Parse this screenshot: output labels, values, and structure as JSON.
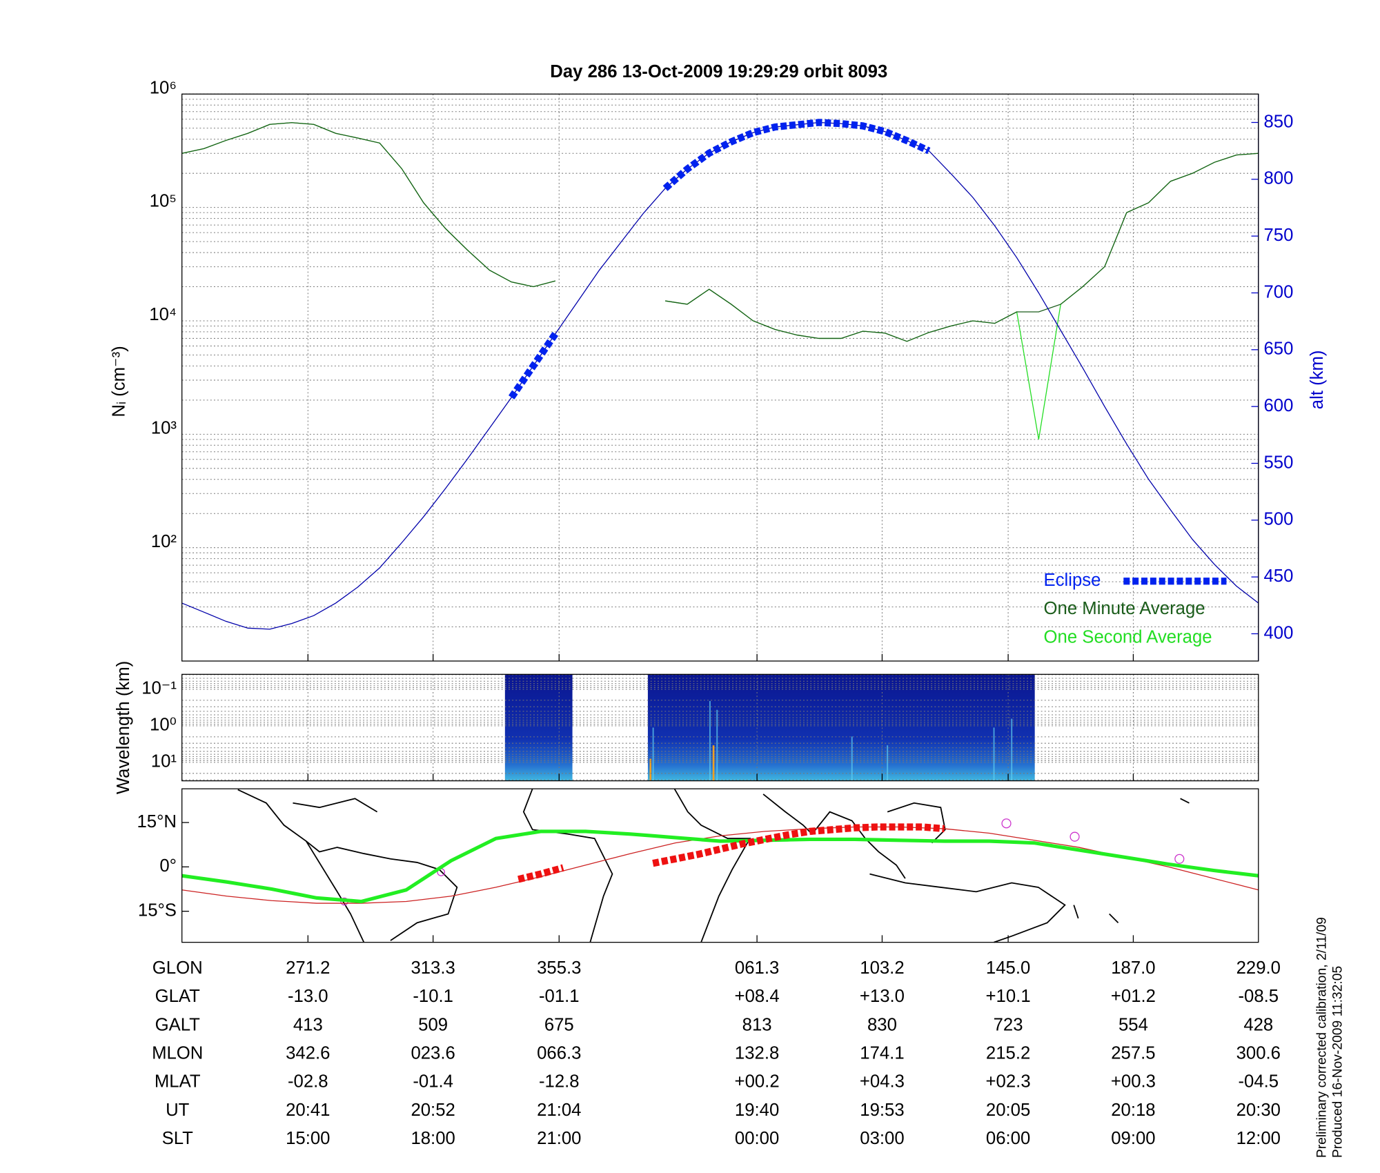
{
  "chart_data": [
    {
      "type": "line",
      "title": "Day 286  13-Oct-2009 19:29:29   orbit 8093",
      "ylabel": "Nᵢ (cm⁻³)",
      "y2label": "alt (km)",
      "log_scale": true,
      "grid": true,
      "legend": "lower right",
      "ylim": [
        10,
        1000000
      ],
      "yticks": [
        {
          "value": 100,
          "label": "10²"
        },
        {
          "value": 1000,
          "label": "10³"
        },
        {
          "value": 10000,
          "label": "10⁴"
        },
        {
          "value": 100000,
          "label": "10⁵"
        },
        {
          "value": 1000000,
          "label": "10⁶"
        }
      ],
      "y2lim": [
        376,
        875
      ],
      "y2ticks": [
        400,
        450,
        500,
        550,
        600,
        650,
        700,
        750,
        800,
        850
      ],
      "series": [
        {
          "name": "One Second Average",
          "color": "#22dd22",
          "style": "thin",
          "values": [
            300000,
            330000,
            390000,
            450000,
            540000,
            560000,
            540000,
            450000,
            410000,
            370000,
            220000,
            110000,
            65000,
            42000,
            28000,
            22000,
            20000,
            22500,
            null,
            null,
            null,
            null,
            15000,
            14000,
            19000,
            14000,
            10000,
            8400,
            7500,
            7000,
            7000,
            8100,
            7800,
            6600,
            7900,
            9000,
            10000,
            9500,
            12000,
            900,
            14000,
            20000,
            30000,
            90000,
            110000,
            170000,
            200000,
            250000,
            290000,
            300000
          ]
        },
        {
          "name": "One Minute Average",
          "color": "#1a5c1a",
          "style": "thin",
          "values": [
            300000,
            330000,
            390000,
            450000,
            540000,
            560000,
            540000,
            450000,
            410000,
            370000,
            220000,
            110000,
            65000,
            42000,
            28000,
            22000,
            20000,
            22500,
            null,
            null,
            null,
            null,
            15000,
            14000,
            19000,
            14000,
            10000,
            8400,
            7500,
            7000,
            7000,
            8100,
            7800,
            6600,
            7900,
            9000,
            10000,
            9500,
            12000,
            12000,
            14000,
            20000,
            30000,
            90000,
            110000,
            170000,
            200000,
            250000,
            290000,
            300000
          ]
        },
        {
          "color": "#0000aa",
          "style": "thin",
          "axis": "y2",
          "values": [
            427,
            419,
            411,
            405,
            404,
            409,
            416,
            427,
            441,
            458,
            480,
            503,
            528,
            554,
            581,
            608,
            636,
            664,
            692,
            720,
            745,
            770,
            792,
            809,
            823,
            833,
            841,
            846,
            848,
            850,
            849,
            847,
            842,
            834,
            825,
            805,
            784,
            759,
            731,
            700,
            667,
            634,
            600,
            567,
            536,
            509,
            483,
            461,
            442,
            427
          ]
        },
        {
          "name": "Eclipse",
          "color": "#0022ee",
          "style": "dashed-thick",
          "axis": "y2",
          "values": [
            null,
            null,
            null,
            null,
            null,
            null,
            null,
            null,
            null,
            null,
            null,
            null,
            null,
            null,
            null,
            608,
            636,
            664,
            null,
            null,
            null,
            null,
            792,
            809,
            823,
            833,
            841,
            846,
            848,
            850,
            849,
            847,
            842,
            834,
            825,
            null,
            null,
            null,
            null,
            null,
            null,
            null,
            null,
            null,
            null,
            null,
            null,
            null,
            null,
            null
          ]
        }
      ]
    },
    {
      "type": "heatmap",
      "ylabel": "Wavelength (km)",
      "log_scale": true,
      "grid": true,
      "ylim": [
        32,
        0.039
      ],
      "yticks": [
        {
          "value": 0.1,
          "label": "10⁻¹"
        },
        {
          "value": 1,
          "label": "10⁰"
        },
        {
          "value": 10,
          "label": "10¹"
        }
      ]
    },
    {
      "type": "line",
      "ylim": [
        -25.5,
        26.4
      ],
      "yticks": [
        {
          "value": 15,
          "label": "15°N"
        },
        {
          "value": 0,
          "label": "0°"
        },
        {
          "value": -15,
          "label": "15°S"
        }
      ],
      "series": [
        {
          "color": "#cc2222",
          "style": "thin",
          "values": [
            -7.8,
            -8.85,
            -9.9,
            -10.65,
            -11.4,
            -11.85,
            -12.3,
            -12.3,
            -12.3,
            -12.0,
            -11.7,
            -10.8,
            -9.9,
            -8.4,
            -6.9,
            -5.1,
            -3.3,
            -1.35,
            0.6,
            2.55,
            4.5,
            6.3,
            8.1,
            9.3,
            10.5,
            11.25,
            12.0,
            12.45,
            12.9,
            13.2,
            13.5,
            13.5,
            13.5,
            13.2,
            12.9,
            12.15,
            11.4,
            10.2,
            9.0,
            7.8,
            6.6,
            4.95,
            3.3,
            1.65,
            0.0,
            -1.95,
            -3.9,
            -5.85,
            -7.8
          ]
        },
        {
          "color": "#22ee22",
          "style": "thick",
          "values": [
            -3.0,
            -4.05,
            -5.1,
            -6.3,
            -7.5,
            -9.0,
            -10.5,
            -11.1,
            -11.7,
            -9.75,
            -7.8,
            -2.85,
            2.1,
            5.85,
            9.6,
            10.8,
            12.0,
            12.0,
            12.0,
            11.55,
            11.1,
            10.5,
            9.9,
            9.3,
            8.7,
            8.85,
            9.0,
            9.15,
            9.3,
            9.3,
            9.3,
            9.15,
            9.0,
            8.85,
            8.7,
            8.7,
            8.7,
            8.4,
            8.1,
            6.9,
            5.7,
            4.5,
            3.3,
            2.1,
            0.9,
            -0.15,
            -1.2,
            -2.1,
            -3.0
          ]
        },
        {
          "color": "#ee1111",
          "style": "dashed-thick",
          "values": [
            null,
            null,
            null,
            null,
            null,
            null,
            null,
            null,
            null,
            null,
            null,
            null,
            null,
            null,
            null,
            -4.2,
            -2.4,
            -0.3,
            null,
            null,
            null,
            1.2,
            2.7,
            4.2,
            6.0,
            7.8,
            9.3,
            10.8,
            12.0,
            12.6,
            13.2,
            13.5,
            13.5,
            13.5,
            12.9,
            null,
            null,
            null,
            null,
            null,
            null,
            null,
            null,
            null,
            null,
            null,
            null,
            null,
            null
          ]
        }
      ]
    }
  ],
  "table": {
    "rows": [
      [
        "GLON",
        "271.2",
        "313.3",
        "355.3",
        "061.3",
        "103.2",
        "145.0",
        "187.0",
        "229.0"
      ],
      [
        "GLAT",
        "-13.0",
        "-10.1",
        "-01.1",
        "+08.4",
        "+13.0",
        "+10.1",
        "+01.2",
        "-08.5"
      ],
      [
        "GALT",
        "413",
        "509",
        "675",
        "813",
        "830",
        "723",
        "554",
        "428"
      ],
      [
        "MLON",
        "342.6",
        "023.6",
        "066.3",
        "132.8",
        "174.1",
        "215.2",
        "257.5",
        "300.6"
      ],
      [
        "MLAT",
        "-02.8",
        "-01.4",
        "-12.8",
        "+00.2",
        "+04.3",
        "+02.3",
        "+00.3",
        "-04.5"
      ],
      [
        "UT",
        "20:41",
        "20:52",
        "21:04",
        "19:40",
        "19:53",
        "20:05",
        "20:18",
        "20:30"
      ],
      [
        "SLT",
        "15:00",
        "18:00",
        "21:00",
        "00:00",
        "03:00",
        "06:00",
        "09:00",
        "12:00"
      ]
    ]
  },
  "notes": [
    "Preliminary corrected calibration, 2/11/09",
    "Produced 16-Nov-2009 11:32:05"
  ]
}
